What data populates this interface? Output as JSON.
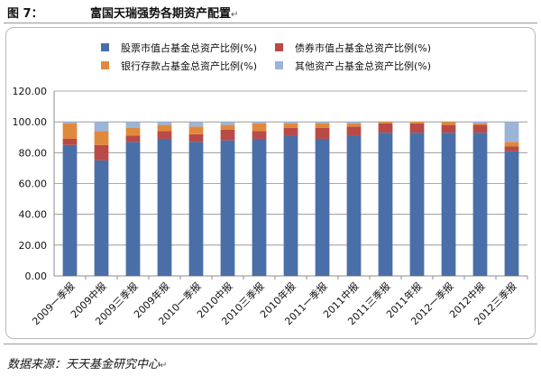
{
  "figure": {
    "label": "图 7：",
    "title": "富国天瑞强势各期资产配置",
    "title_mark": "↵",
    "source": "数据来源：天天基金研究中心",
    "source_mark": "↵"
  },
  "chart_data": {
    "type": "bar",
    "stacked": true,
    "title": "",
    "xlabel": "",
    "ylabel": "",
    "ylim": [
      0,
      120
    ],
    "yticks": [
      "0.00",
      "20.00",
      "40.00",
      "60.00",
      "80.00",
      "100.00",
      "120.00"
    ],
    "grid": true,
    "legend_position": "top",
    "categories": [
      "2009一季报",
      "2009中报",
      "2009三季报",
      "2009年报",
      "2010一季报",
      "2010中报",
      "2010三季报",
      "2010年报",
      "2011一季报",
      "2011中报",
      "2011三季报",
      "2011年报",
      "2012一季报",
      "2012中报",
      "2012三季报"
    ],
    "series": [
      {
        "name": "股票市值占基金总资产比例(%)",
        "color": "#4a6fa8",
        "values": [
          85,
          75,
          87,
          89,
          87,
          88,
          89,
          91,
          89,
          91,
          93,
          93,
          93,
          93,
          81
        ]
      },
      {
        "name": "债券市值占基金总资产比例(%)",
        "color": "#b94a46",
        "values": [
          4,
          10,
          4,
          5,
          5,
          7,
          5,
          5,
          7,
          6,
          6,
          6,
          5,
          5,
          3
        ]
      },
      {
        "name": "银行存款占基金总资产比例(%)",
        "color": "#e0893c",
        "values": [
          10,
          9,
          5,
          4,
          5,
          3,
          5,
          3,
          3,
          2,
          1,
          1,
          2,
          1,
          3
        ]
      },
      {
        "name": "其他资产占基金总资产比例(%)",
        "color": "#9db4d9",
        "values": [
          1,
          6,
          4,
          2,
          3,
          2,
          1,
          1,
          1,
          1,
          0,
          0,
          0,
          1,
          13
        ]
      }
    ]
  }
}
